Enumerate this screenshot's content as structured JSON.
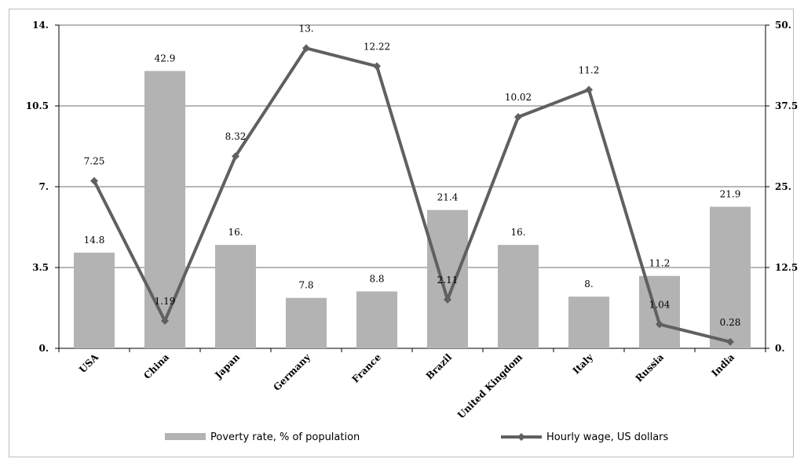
{
  "chart_data": {
    "type": "bar+line",
    "categories": [
      "USA",
      "China",
      "Japan",
      "Germany",
      "France",
      "Brazil",
      "United Kingdom",
      "Italy",
      "Russia",
      "India"
    ],
    "series": [
      {
        "name": "Poverty rate, % of population",
        "type": "bar",
        "axis": "right",
        "values": [
          14.8,
          42.9,
          16.0,
          7.8,
          8.8,
          21.4,
          16.0,
          8.0,
          11.2,
          21.9
        ],
        "labels": [
          "14.8",
          "42.9",
          "16.",
          "7.8",
          "8.8",
          "21.4",
          "16.",
          "8.",
          "11.2",
          "21.9"
        ]
      },
      {
        "name": "Hourly wage, US dollars",
        "type": "line",
        "axis": "left",
        "values": [
          7.25,
          1.19,
          8.32,
          13.0,
          12.22,
          2.11,
          10.02,
          11.2,
          1.04,
          0.28
        ],
        "labels": [
          "7.25",
          "1.19",
          "8.32",
          "13.",
          "12.22",
          "2.11",
          "10.02",
          "11.2",
          "1.04",
          "0.28"
        ]
      }
    ],
    "y_left": {
      "ylim": [
        0,
        14
      ],
      "ticks": [
        "0.",
        "3.5",
        "7.",
        "10.5",
        "14."
      ]
    },
    "y_right": {
      "ylim": [
        0,
        50
      ],
      "ticks": [
        "0.",
        "12.5",
        "25.",
        "37.5",
        "50."
      ]
    },
    "grid": true,
    "legend": "bottom",
    "colors": {
      "bar": "#b3b3b3",
      "line": "#606060",
      "grid": "#8c8c8c"
    }
  }
}
